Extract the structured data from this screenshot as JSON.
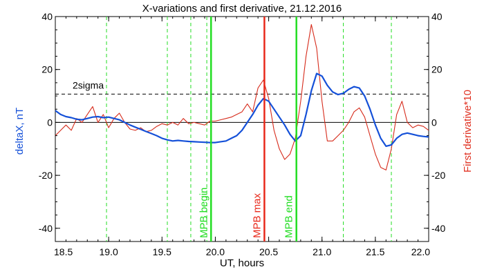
{
  "colors": {
    "deltaX": "#1450d8",
    "derivative": "#d62a1a",
    "mpb_begin": "#22dd22",
    "mpb_max": "#e8281a",
    "mpb_end": "#22dd22",
    "dashed_green": "#22dd22",
    "axis": "#000000"
  },
  "chart_data": {
    "type": "line",
    "title": "X-variations and first derivative, 21.12.2016",
    "xlabel": "UT, hours",
    "ylabel_left": "deltaX, nT",
    "ylabel_right": "First derivative*10",
    "xlim": [
      18.5,
      22.0
    ],
    "ylim": [
      -45,
      40
    ],
    "x_ticks": [
      18.5,
      19.0,
      19.5,
      20.0,
      20.5,
      21.0,
      21.5,
      22.0
    ],
    "x_tick_labels": [
      "18.5",
      "19.0",
      "19.5",
      "20.0",
      "20.5",
      "21.0",
      "21.5",
      "22.0"
    ],
    "y_ticks": [
      -40,
      -20,
      0,
      20,
      40
    ],
    "y_tick_labels": [
      "-40",
      "-20",
      "0",
      "20",
      "40"
    ],
    "zero_line": 0,
    "threshold": {
      "label": "2sigma",
      "value": 10.7
    },
    "dashed_verticals": [
      18.98,
      19.55,
      19.77,
      19.92,
      21.2,
      21.65
    ],
    "markers": [
      {
        "label": "MPB begin",
        "x": 19.96,
        "color": "#22dd22"
      },
      {
        "label": "MPB max",
        "x": 20.46,
        "color": "#e8281a"
      },
      {
        "label": "MPB end",
        "x": 20.76,
        "color": "#22dd22"
      }
    ],
    "series": [
      {
        "name": "deltaX, nT",
        "color": "#1450d8",
        "x": [
          18.5,
          18.55,
          18.6,
          18.65,
          18.7,
          18.75,
          18.8,
          18.85,
          18.9,
          18.95,
          19.0,
          19.05,
          19.1,
          19.15,
          19.2,
          19.25,
          19.3,
          19.35,
          19.4,
          19.45,
          19.5,
          19.55,
          19.6,
          19.65,
          19.7,
          19.75,
          19.8,
          19.85,
          19.9,
          19.95,
          20.0,
          20.05,
          20.1,
          20.15,
          20.2,
          20.25,
          20.3,
          20.35,
          20.4,
          20.45,
          20.5,
          20.55,
          20.6,
          20.65,
          20.7,
          20.75,
          20.8,
          20.85,
          20.9,
          20.95,
          21.0,
          21.05,
          21.1,
          21.15,
          21.2,
          21.25,
          21.3,
          21.35,
          21.4,
          21.45,
          21.5,
          21.55,
          21.6,
          21.65,
          21.7,
          21.75,
          21.8,
          21.85,
          21.9,
          21.95,
          22.0
        ],
        "values": [
          4.5,
          3.0,
          2.2,
          1.8,
          1.2,
          1.0,
          1.5,
          2.0,
          2.2,
          1.8,
          2.0,
          1.5,
          1.0,
          0.0,
          -1.0,
          -1.8,
          -2.6,
          -3.4,
          -4.2,
          -5.0,
          -6.0,
          -6.6,
          -7.0,
          -6.8,
          -7.0,
          -7.2,
          -7.3,
          -7.4,
          -7.5,
          -7.6,
          -7.6,
          -7.3,
          -7.0,
          -6.0,
          -5.0,
          -3.0,
          0.0,
          3.0,
          6.5,
          9.0,
          8.0,
          5.0,
          2.0,
          -1.0,
          -4.5,
          -7.0,
          -5.0,
          3.0,
          12.0,
          18.5,
          17.5,
          14.0,
          11.5,
          10.5,
          11.0,
          12.5,
          13.5,
          13.0,
          10.0,
          5.0,
          -1.0,
          -6.0,
          -9.0,
          -8.5,
          -6.0,
          -4.5,
          -4.0,
          -4.5,
          -5.0,
          -5.3,
          -5.5
        ]
      },
      {
        "name": "First derivative*10",
        "color": "#d62a1a",
        "x": [
          18.5,
          18.55,
          18.6,
          18.65,
          18.7,
          18.75,
          18.8,
          18.85,
          18.9,
          18.95,
          19.0,
          19.05,
          19.1,
          19.15,
          19.2,
          19.25,
          19.3,
          19.35,
          19.4,
          19.45,
          19.5,
          19.55,
          19.6,
          19.65,
          19.7,
          19.75,
          19.8,
          19.85,
          19.9,
          19.95,
          20.0,
          20.05,
          20.1,
          20.15,
          20.2,
          20.25,
          20.3,
          20.35,
          20.4,
          20.45,
          20.5,
          20.55,
          20.6,
          20.65,
          20.7,
          20.75,
          20.8,
          20.85,
          20.9,
          20.95,
          21.0,
          21.05,
          21.1,
          21.15,
          21.2,
          21.25,
          21.3,
          21.35,
          21.4,
          21.45,
          21.5,
          21.55,
          21.6,
          21.65,
          21.7,
          21.75,
          21.8,
          21.85,
          21.9,
          21.95,
          22.0
        ],
        "values": [
          -5.0,
          -3.0,
          -1.0,
          -3.0,
          1.5,
          0.0,
          3.0,
          6.0,
          0.0,
          3.0,
          -2.0,
          1.5,
          3.5,
          0.0,
          -2.5,
          -3.0,
          -2.0,
          -3.5,
          -3.0,
          -1.5,
          -0.5,
          -1.0,
          0.0,
          -1.0,
          1.5,
          -0.5,
          0.0,
          -0.5,
          -1.0,
          0.5,
          0.5,
          1.0,
          1.5,
          2.0,
          3.0,
          4.0,
          7.0,
          4.0,
          13.0,
          16.0,
          9.0,
          -3.0,
          -10.0,
          -14.0,
          -12.0,
          -6.0,
          8.0,
          25.0,
          37.0,
          28.0,
          8.0,
          -7.0,
          -7.0,
          -5.0,
          -3.0,
          0.0,
          4.0,
          5.5,
          2.0,
          -5.0,
          -12.0,
          -17.0,
          -18.0,
          -10.0,
          3.0,
          8.0,
          0.0,
          -2.0,
          -1.0,
          -1.5,
          -3.0
        ]
      }
    ]
  }
}
